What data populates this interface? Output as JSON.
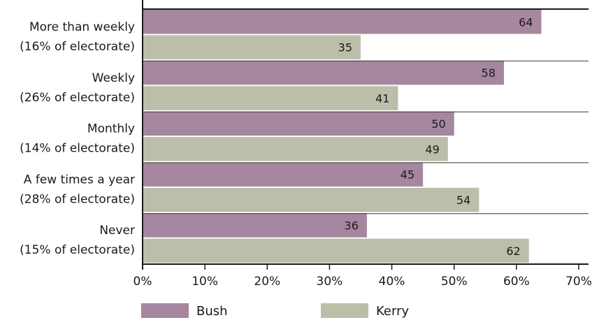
{
  "chart_data": {
    "type": "bar",
    "orientation": "horizontal",
    "title": "",
    "xlabel": "",
    "ylabel": "",
    "categories": [
      [
        "More than weekly",
        "(16% of electorate)"
      ],
      [
        "Weekly",
        "(26% of electorate)"
      ],
      [
        "Monthly",
        "(14% of electorate)"
      ],
      [
        "A few times a year",
        "(28% of electorate)"
      ],
      [
        "Never",
        "(15% of electorate)"
      ]
    ],
    "series": [
      {
        "name": "Bush",
        "color": "#a6879f",
        "values": [
          64,
          58,
          50,
          45,
          36
        ]
      },
      {
        "name": "Kerry",
        "color": "#bcbeaa",
        "values": [
          35,
          41,
          49,
          54,
          62
        ]
      }
    ],
    "xlim": [
      0,
      70
    ],
    "xticks": [
      "0%",
      "10%",
      "20%",
      "30%",
      "40%",
      "50%",
      "60%",
      "70%"
    ],
    "grid": false,
    "legend_position": "bottom"
  }
}
